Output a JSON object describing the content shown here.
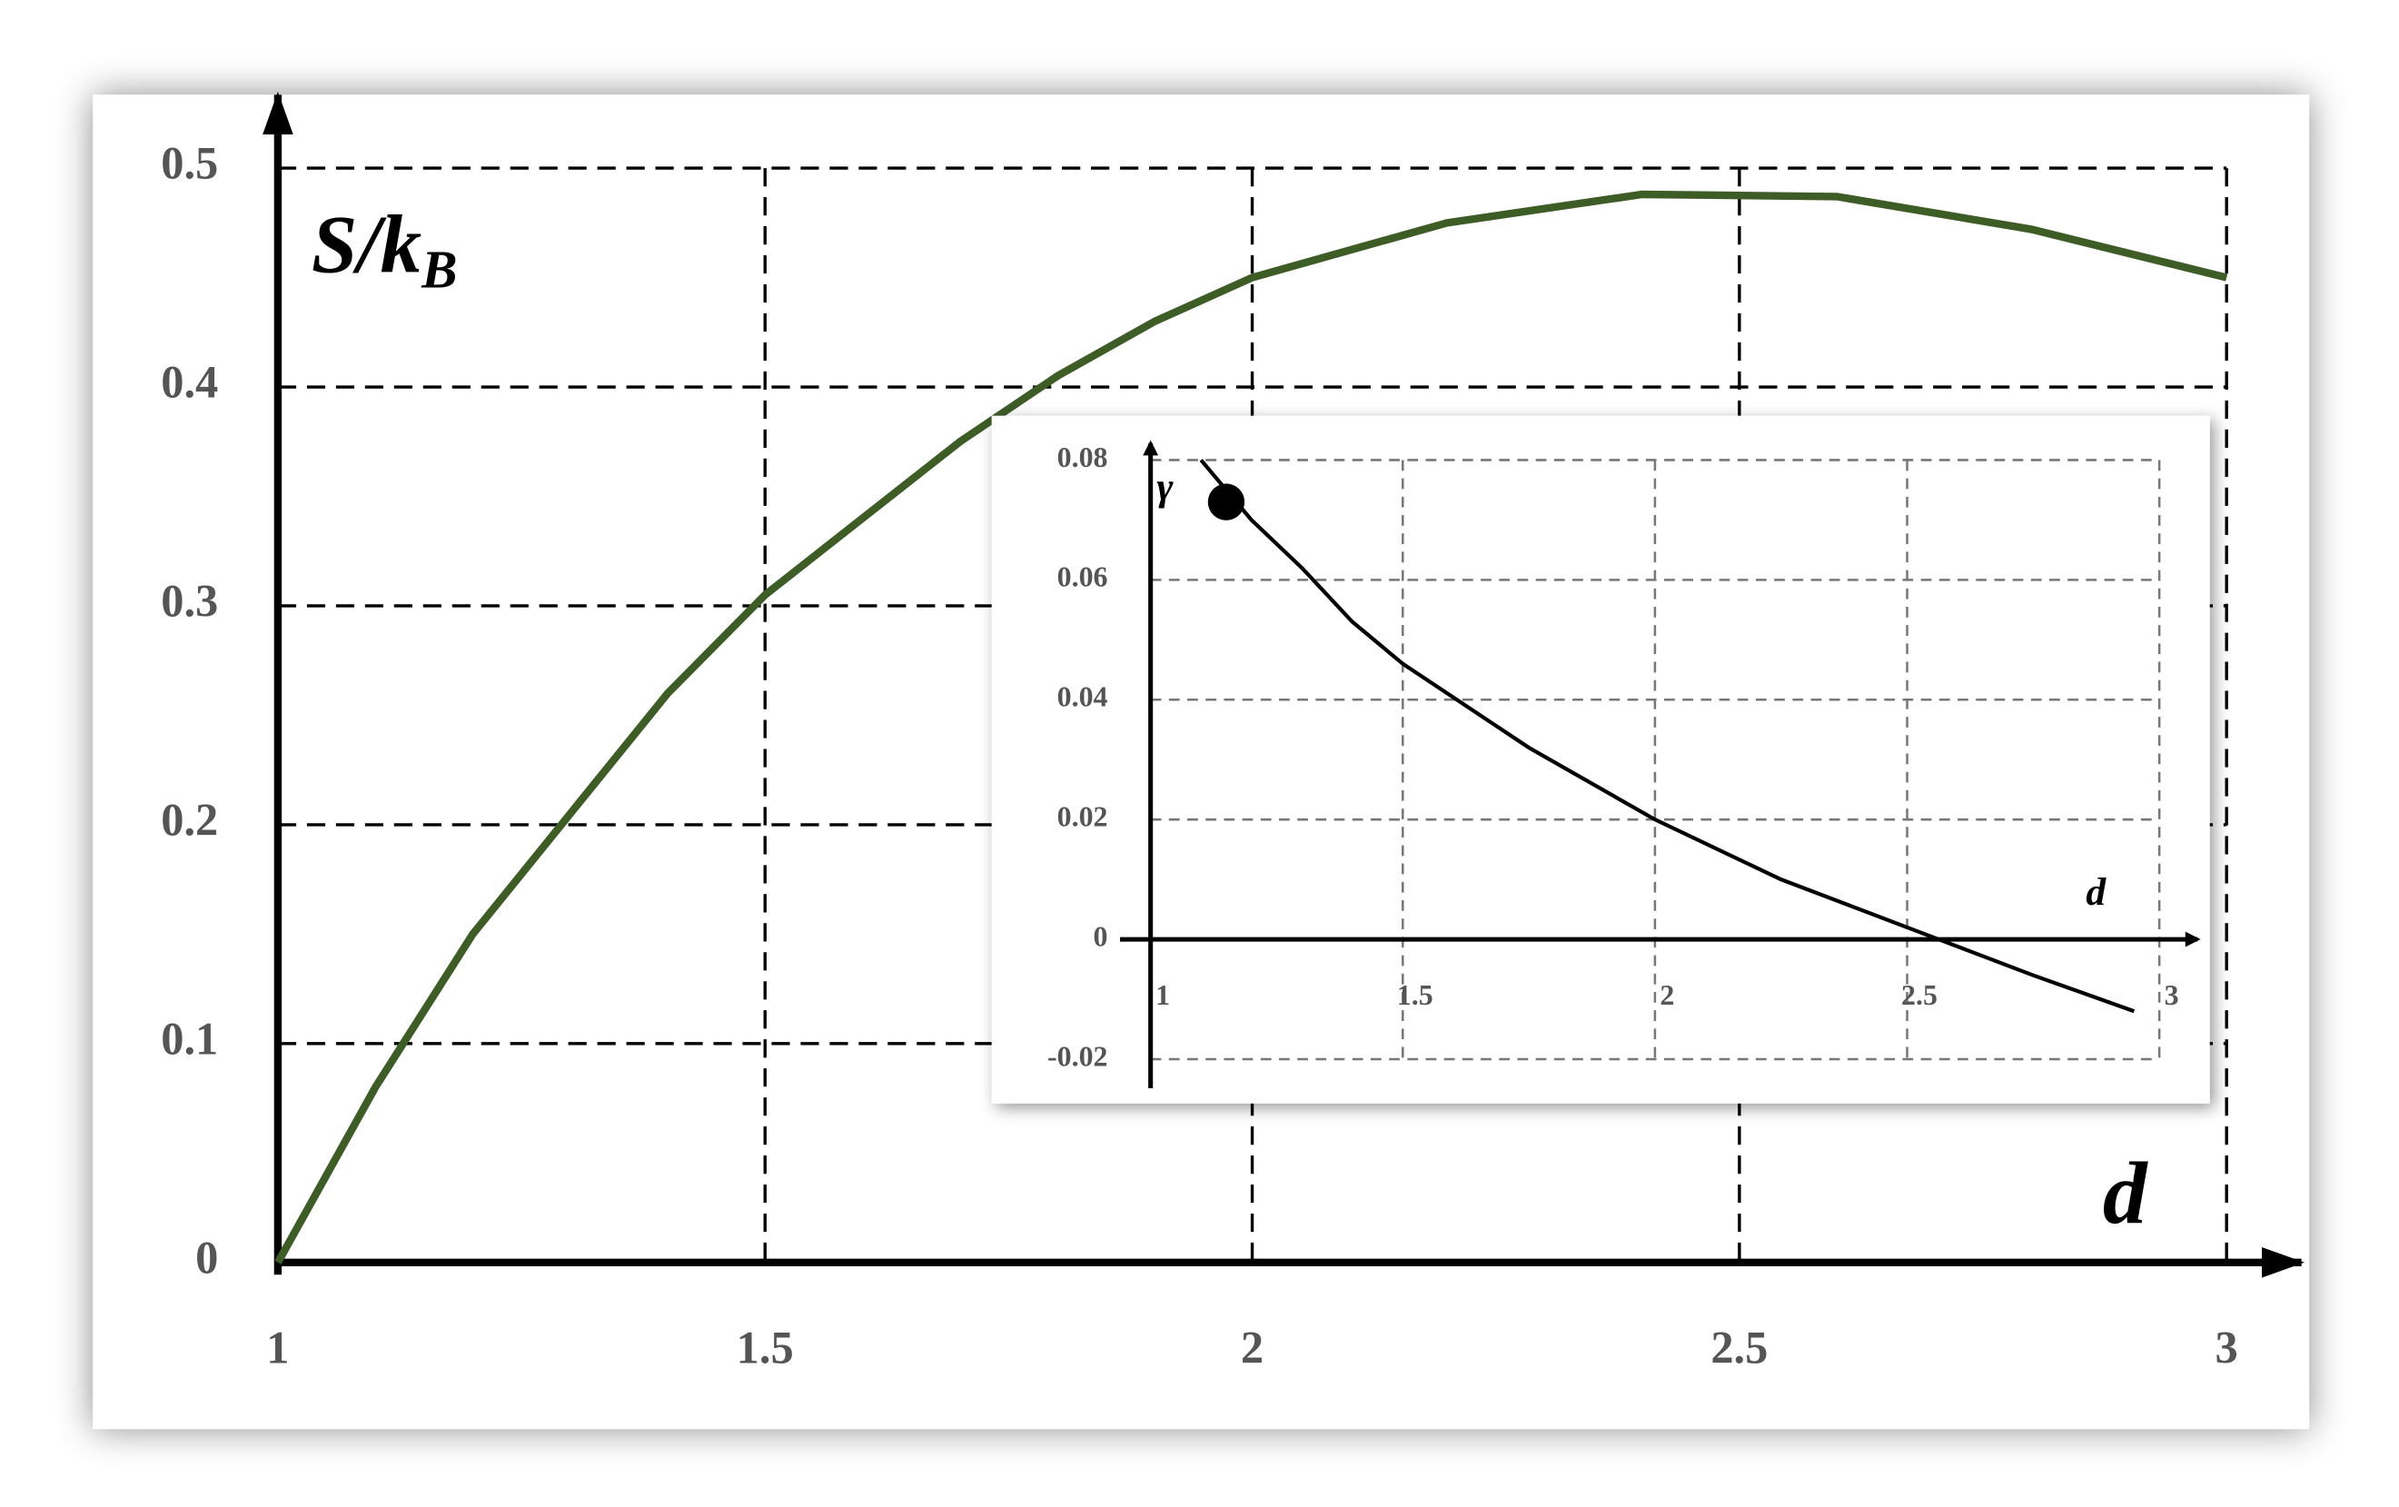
{
  "chart_data": [
    {
      "type": "line",
      "y_label": "S/k",
      "y_label_sub": "B",
      "x_label": "d",
      "x": [
        1,
        1.1,
        1.2,
        1.3,
        1.4,
        1.5,
        1.6,
        1.7,
        1.8,
        1.9,
        2.0,
        2.2,
        2.4,
        2.6,
        2.8,
        3.0
      ],
      "series": [
        {
          "color": "#3d5c26",
          "values": [
            0,
            0.08,
            0.15,
            0.205,
            0.26,
            0.305,
            0.34,
            0.375,
            0.405,
            0.43,
            0.45,
            0.475,
            0.488,
            0.487,
            0.472,
            0.45
          ]
        }
      ],
      "xlim": [
        1,
        3
      ],
      "ylim": [
        0,
        0.5
      ],
      "xticks": [
        1,
        1.5,
        2,
        2.5,
        3
      ],
      "yticks": [
        0,
        0.1,
        0.2,
        0.3,
        0.4,
        0.5
      ],
      "grid": true
    },
    {
      "type": "line",
      "y_label": "γ",
      "x_label": "d",
      "x": [
        1.1,
        1.2,
        1.3,
        1.4,
        1.5,
        1.75,
        2.0,
        2.25,
        2.5,
        2.75,
        2.95
      ],
      "series": [
        {
          "color": "#000000",
          "values": [
            0.08,
            0.07,
            0.062,
            0.053,
            0.046,
            0.032,
            0.02,
            0.01,
            0.002,
            -0.006,
            -0.012
          ]
        }
      ],
      "marker": {
        "x": 1.15,
        "y": 0.073
      },
      "xlim": [
        1,
        3
      ],
      "ylim": [
        -0.02,
        0.08
      ],
      "xticks": [
        1,
        1.5,
        2,
        2.5,
        3
      ],
      "yticks": [
        -0.02,
        0,
        0.02,
        0.04,
        0.06,
        0.08
      ],
      "grid": true
    }
  ]
}
